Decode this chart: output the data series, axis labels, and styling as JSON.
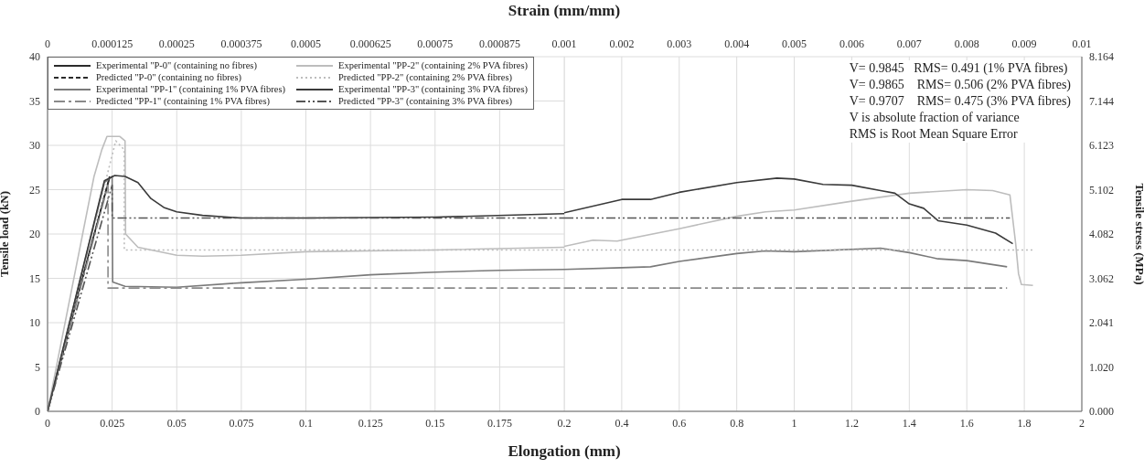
{
  "chart_data": [
    {
      "type": "line",
      "xlabel": "Elongation (mm)",
      "x2label": "Strain (mm/mm)",
      "ylabel": "Tensile load (kN)",
      "xlim": [
        0,
        0.2
      ],
      "xticks": [
        0,
        0.025,
        0.05,
        0.075,
        0.1,
        0.125,
        0.15,
        0.175,
        0.2
      ],
      "x2lim": [
        0,
        0.001
      ],
      "x2ticks": [
        0,
        0.000125,
        0.00025,
        0.000375,
        0.0005,
        0.000625,
        0.00075,
        0.000875,
        0.001
      ],
      "ylim": [
        0,
        40
      ],
      "yticks": [
        0,
        5,
        10,
        15,
        20,
        25,
        30,
        35,
        40
      ],
      "grid": true,
      "legend": "top left",
      "series": [
        {
          "name": "Experimental \"P-0\" (containing no fibres)",
          "color": "#2b2b2b",
          "line_style": "solid",
          "x": [
            0,
            0.012,
            0.024
          ],
          "values": [
            0,
            13.5,
            26.3
          ]
        },
        {
          "name": "Predicted \"P-0\" (containing no fibres)",
          "color": "#2b2b2b",
          "line_style": "dashed",
          "x": [
            0,
            0.024
          ],
          "values": [
            0,
            26.5
          ]
        },
        {
          "name": "Experimental \"PP-1\" (containing 1% PVA fibres)",
          "color": "#7a7a7a",
          "line_style": "solid",
          "x": [
            0,
            0.022,
            0.025,
            0.0252,
            0.03,
            0.05,
            0.075,
            0.1,
            0.125,
            0.15,
            0.175,
            0.2
          ],
          "values": [
            0,
            25.8,
            26.5,
            14.6,
            14.1,
            14.0,
            14.5,
            14.9,
            15.4,
            15.7,
            15.9,
            16.0
          ]
        },
        {
          "name": "Predicted \"PP-1\" (containing 1% PVA fibres)",
          "color": "#8a8a8a",
          "line_style": "dashdot",
          "x": [
            0,
            0.0234,
            0.0234,
            0.2
          ],
          "values": [
            0,
            25.5,
            13.9,
            13.9
          ]
        },
        {
          "name": "Experimental \"PP-2\" (containing 2% PVA fibres)",
          "color": "#bdbdbd",
          "line_style": "solid",
          "x": [
            0,
            0.018,
            0.021,
            0.023,
            0.028,
            0.03,
            0.0302,
            0.035,
            0.05,
            0.06,
            0.075,
            0.1,
            0.15,
            0.2
          ],
          "values": [
            0,
            26.5,
            29.5,
            31,
            31,
            30.5,
            20,
            18.5,
            17.6,
            17.5,
            17.6,
            18.0,
            18.2,
            18.5
          ]
        },
        {
          "name": "Predicted \"PP-2\" (containing 2% PVA fibres)",
          "color": "#bdbdbd",
          "line_style": "dotted",
          "x": [
            0,
            0.0264,
            0.0297,
            0.0297,
            0.2
          ],
          "values": [
            0,
            30.5,
            29.5,
            18.2,
            18.2
          ]
        },
        {
          "name": "Experimental \"PP-3\" (containing 3% PVA fibres)",
          "color": "#3a3a3a",
          "line_style": "solid",
          "x": [
            0,
            0.022,
            0.026,
            0.03,
            0.035,
            0.04,
            0.045,
            0.05,
            0.06,
            0.075,
            0.1,
            0.15,
            0.2
          ],
          "values": [
            0,
            26,
            26.6,
            26.5,
            25.8,
            24,
            23,
            22.5,
            22.1,
            21.8,
            21.8,
            21.9,
            22.3
          ]
        },
        {
          "name": "Predicted \"PP-3\" (containing 3% PVA fibres)",
          "color": "#555555",
          "line_style": "dashdotdot",
          "x": [
            0,
            0.025,
            0.025,
            0.2
          ],
          "values": [
            0,
            25.5,
            21.8,
            21.8
          ]
        }
      ]
    },
    {
      "type": "line",
      "y2label": "Tensile stress (MPa)",
      "xlim": [
        0.2,
        2
      ],
      "xticks": [
        0.4,
        0.6,
        0.8,
        1,
        1.2,
        1.4,
        1.6,
        1.8,
        2
      ],
      "x2lim": [
        0.001,
        0.01
      ],
      "x2ticks": [
        0.002,
        0.003,
        0.004,
        0.005,
        0.006,
        0.007,
        0.008,
        0.009,
        0.01
      ],
      "ylim": [
        0,
        40
      ],
      "yticks": [
        0,
        5,
        10,
        15,
        20,
        25,
        30,
        35,
        40
      ],
      "y2lim": [
        0,
        8.164
      ],
      "y2ticks": [
        {
          "value": 0,
          "label": "0.000"
        },
        {
          "value": 1.02,
          "label": "1.020"
        },
        {
          "value": 2.041,
          "label": "2.041"
        },
        {
          "value": 3.062,
          "label": "3.062"
        },
        {
          "value": 4.082,
          "label": "4.082"
        },
        {
          "value": 5.102,
          "label": "5.102"
        },
        {
          "value": 6.123,
          "label": "6.123"
        },
        {
          "value": 7.144,
          "label": "7.144"
        },
        {
          "value": 8.164,
          "label": "8.164"
        }
      ],
      "tick_labels": "x",
      "grid": true,
      "annotations": [
        "V= 0.9845   RMS= 0.491 (1% PVA fibres)",
        "V= 0.9865    RMS= 0.506 (2% PVA fibres)",
        "V= 0.9707    RMS= 0.475 (3% PVA fibres)",
        "V is absolute fraction of variance",
        "RMS is Root Mean Square Error"
      ],
      "series": [
        {
          "color": "#7a7a7a",
          "line_style": "solid",
          "x": [
            0.2,
            0.4,
            0.5,
            0.6,
            0.8,
            0.9,
            1.0,
            1.3,
            1.4,
            1.5,
            1.6,
            1.74
          ],
          "values": [
            16.0,
            16.2,
            16.3,
            16.9,
            17.8,
            18.1,
            18.0,
            18.4,
            17.9,
            17.2,
            17.0,
            16.3
          ]
        },
        {
          "color": "#8a8a8a",
          "line_style": "dashdot",
          "x": [
            0.2,
            1.74
          ],
          "values": [
            13.9,
            13.9
          ]
        },
        {
          "color": "#bdbdbd",
          "line_style": "solid",
          "x": [
            0.2,
            0.3,
            0.384,
            0.6,
            0.8,
            0.9,
            1.0,
            1.2,
            1.4,
            1.6,
            1.69,
            1.75,
            1.77,
            1.78,
            1.79,
            1.83
          ],
          "values": [
            18.6,
            19.3,
            19.2,
            20.6,
            22.0,
            22.5,
            22.7,
            23.7,
            24.6,
            25.0,
            24.9,
            24.4,
            18.9,
            15.5,
            14.3,
            14.2
          ]
        },
        {
          "color": "#bdbdbd",
          "line_style": "dotted",
          "x": [
            0.2,
            1.83
          ],
          "values": [
            18.2,
            18.2
          ]
        },
        {
          "color": "#3a3a3a",
          "line_style": "solid",
          "x": [
            0.2,
            0.4,
            0.5,
            0.6,
            0.8,
            0.94,
            1.0,
            1.1,
            1.2,
            1.3,
            1.35,
            1.4,
            1.45,
            1.5,
            1.6,
            1.7,
            1.76
          ],
          "values": [
            22.4,
            23.9,
            23.9,
            24.7,
            25.8,
            26.3,
            26.2,
            25.6,
            25.5,
            24.9,
            24.6,
            23.4,
            22.9,
            21.5,
            21.0,
            20.1,
            18.9
          ]
        },
        {
          "color": "#555555",
          "line_style": "dashdotdot",
          "x": [
            0.2,
            1.75
          ],
          "values": [
            21.8,
            21.8
          ]
        }
      ]
    }
  ]
}
